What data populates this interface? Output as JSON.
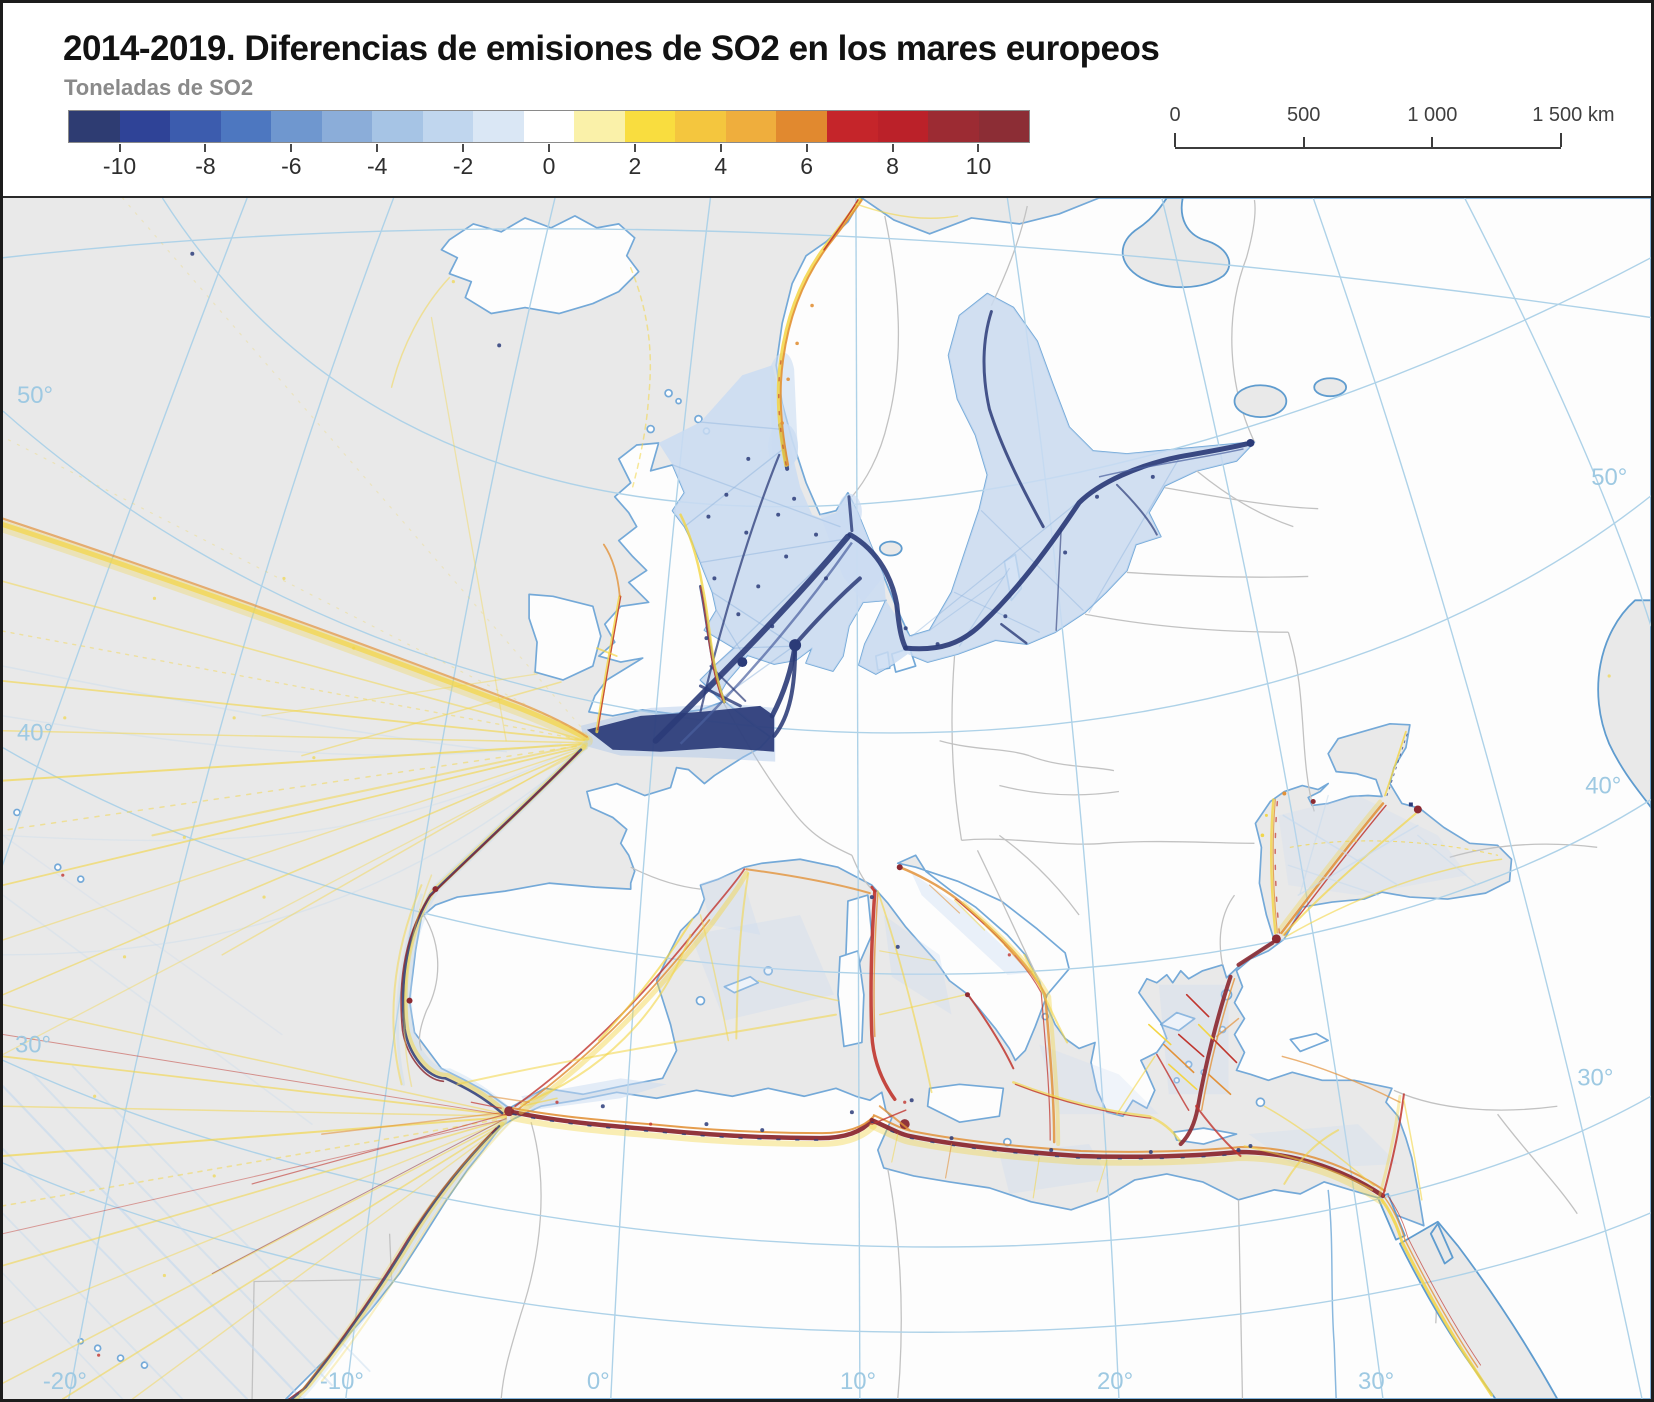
{
  "header": {
    "title": "2014-2019. Diferencias de emisiones de SO2 en los mares europeos",
    "subtitle": "Toneladas de SO2"
  },
  "colorbar": {
    "tick_labels": [
      "-10",
      "-8",
      "-6",
      "-4",
      "-2",
      "0",
      "2",
      "4",
      "6",
      "8",
      "10"
    ],
    "segments": [
      "#2e3c72",
      "#2f4397",
      "#3c5cae",
      "#4d77c0",
      "#6f97cf",
      "#8badd9",
      "#a6c4e5",
      "#c0d6ee",
      "#dae7f5",
      "#ffffff",
      "#faf1a9",
      "#f9dd3f",
      "#f4c63e",
      "#efae3d",
      "#e1892f",
      "#c5252a",
      "#bb2129",
      "#9c2b33",
      "#8c2d35"
    ]
  },
  "scalebar": {
    "labels": [
      "0",
      "500",
      "1 000",
      "1 500 km"
    ]
  },
  "map": {
    "graticule": {
      "left": [
        "50°",
        "40°",
        "30°"
      ],
      "right": [
        "50°",
        "40°",
        "30°"
      ],
      "bottom": [
        "-20°",
        "-10°",
        "0°",
        "10°",
        "20°",
        "30°"
      ]
    },
    "legend_colors": {
      "sea": "#e9e9e9",
      "land": "#fdfdfd",
      "coastline": "#74a9d8",
      "borders": "#c2c2c2",
      "graticule": "#aed2e8",
      "so2_decrease_strong": "#2b3b78",
      "so2_decrease_diffuse": "#cadcf2",
      "so2_increase_light": "#f3d544",
      "so2_increase_mid": "#e2923a",
      "so2_increase_strong": "#8c2a32"
    }
  }
}
